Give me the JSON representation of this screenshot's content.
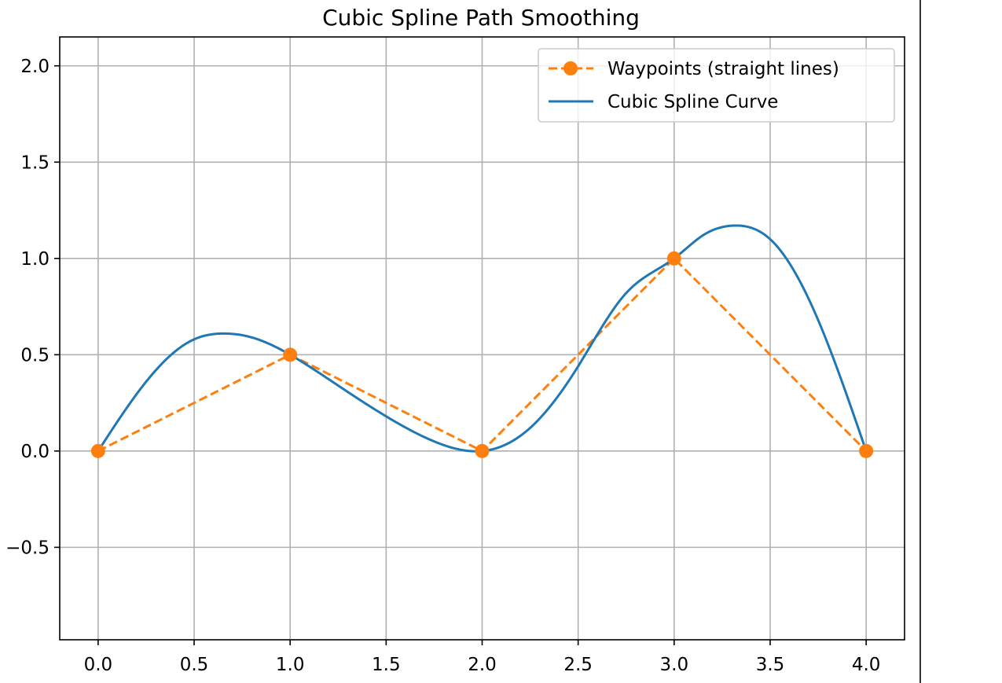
{
  "chart_data": {
    "type": "line",
    "title": "Cubic Spline Path Smoothing",
    "xlabel": "",
    "ylabel": "",
    "xlim": [
      -0.2,
      4.2
    ],
    "ylim": [
      -0.98,
      2.15
    ],
    "xticks": [
      0.0,
      0.5,
      1.0,
      1.5,
      2.0,
      2.5,
      3.0,
      3.5,
      4.0
    ],
    "yticks": [
      -0.5,
      0.0,
      0.5,
      1.0,
      1.5,
      2.0
    ],
    "xtick_labels": [
      "0.0",
      "0.5",
      "1.0",
      "1.5",
      "2.0",
      "2.5",
      "3.0",
      "3.5",
      "4.0"
    ],
    "ytick_labels": [
      "−0.5",
      "0.0",
      "0.5",
      "1.0",
      "1.5",
      "2.0"
    ],
    "grid": true,
    "legend_position": "top-right",
    "series": [
      {
        "name": "Waypoints (straight lines)",
        "style": "dashed-with-markers",
        "color": "#ff7f0e",
        "x": [
          0,
          1,
          2,
          3,
          4
        ],
        "y": [
          0,
          0.5,
          0,
          1,
          0
        ]
      },
      {
        "name": "Cubic Spline Curve",
        "style": "solid",
        "color": "#1f77b4",
        "x": [
          0,
          0.25,
          0.5,
          0.65,
          0.8,
          1.0,
          1.25,
          1.5,
          1.75,
          2.0,
          2.25,
          2.5,
          2.75,
          3.0,
          3.15,
          3.3,
          3.5,
          3.75,
          4.0
        ],
        "y": [
          0,
          0.36,
          0.58,
          0.61,
          0.59,
          0.5,
          0.34,
          0.18,
          0.05,
          0,
          0.12,
          0.44,
          0.82,
          1.0,
          1.12,
          1.17,
          1.1,
          0.68,
          0
        ]
      }
    ]
  }
}
